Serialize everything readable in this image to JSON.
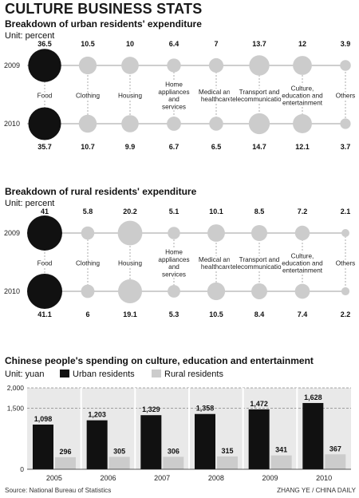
{
  "title": "CULTURE BUSINESS STATS",
  "source": "Source: National Bureau of Statistics",
  "credit": "ZHANG YE / CHINA DAILY",
  "colors": {
    "dark": "#111111",
    "light": "#cccccc",
    "panel": "#e9e9e9",
    "line": "#bdbdbd"
  },
  "chart_data": [
    {
      "type": "bubble",
      "title": "Breakdown of urban residents' expenditure",
      "unit": "Unit: percent",
      "categories": [
        "Food",
        "Clothing",
        "Housing",
        "Home appliances and services",
        "Medical and healthcare",
        "Transport and telecommunications",
        "Culture, education and entertainment",
        "Others"
      ],
      "category_lines": [
        [
          "Food"
        ],
        [
          "Clothing"
        ],
        [
          "Housing"
        ],
        [
          "Home",
          "appliances",
          "and",
          "services"
        ],
        [
          "Medical and",
          "healthcare"
        ],
        [
          "Transport and",
          "telecommunications"
        ],
        [
          "Culture,",
          "education and",
          "entertainment"
        ],
        [
          "Others"
        ]
      ],
      "series": [
        {
          "name": "2009",
          "values": [
            36.5,
            10.5,
            10,
            6.4,
            7,
            13.7,
            12,
            3.9
          ]
        },
        {
          "name": "2010",
          "values": [
            35.7,
            10.7,
            9.9,
            6.7,
            6.5,
            14.7,
            12.1,
            3.7
          ]
        }
      ]
    },
    {
      "type": "bubble",
      "title": "Breakdown of rural residents' expenditure",
      "unit": "Unit: percent",
      "categories": [
        "Food",
        "Clothing",
        "Housing",
        "Home appliances and services",
        "Medical and healthcare",
        "Transport and telecommunications",
        "Culture, education and entertainment",
        "Others"
      ],
      "category_lines": [
        [
          "Food"
        ],
        [
          "Clothing"
        ],
        [
          "Housing"
        ],
        [
          "Home",
          "appliances",
          "and",
          "services"
        ],
        [
          "Medical and",
          "healthcare"
        ],
        [
          "Transport and",
          "telecommunications"
        ],
        [
          "Culture,",
          "education and",
          "entertainment"
        ],
        [
          "Others"
        ]
      ],
      "series": [
        {
          "name": "2009",
          "values": [
            41,
            5.8,
            20.2,
            5.1,
            10.1,
            8.5,
            7.2,
            2.1
          ]
        },
        {
          "name": "2010",
          "values": [
            41.1,
            6,
            19.1,
            5.3,
            10.5,
            8.4,
            7.4,
            2.2
          ]
        }
      ]
    },
    {
      "type": "bar",
      "title": "Chinese people's spending on culture, education and entertainment",
      "unit": "Unit: yuan",
      "categories": [
        "2005",
        "2006",
        "2007",
        "2008",
        "2009",
        "2010"
      ],
      "series": [
        {
          "name": "Urban residents",
          "values": [
            1098,
            1203,
            1329,
            1358,
            1472,
            1628
          ]
        },
        {
          "name": "Rural residents",
          "values": [
            296,
            305,
            306,
            315,
            341,
            367
          ]
        }
      ],
      "value_labels": {
        "Urban residents": [
          "1,098",
          "1,203",
          "1,329",
          "1,358",
          "1,472",
          "1,628"
        ],
        "Rural residents": [
          "296",
          "305",
          "306",
          "315",
          "341",
          "367"
        ]
      },
      "yticks": [
        0,
        1500,
        2000
      ],
      "ytick_labels": [
        "0",
        "1,500",
        "2,000"
      ],
      "ylim": [
        0,
        2000
      ]
    }
  ]
}
